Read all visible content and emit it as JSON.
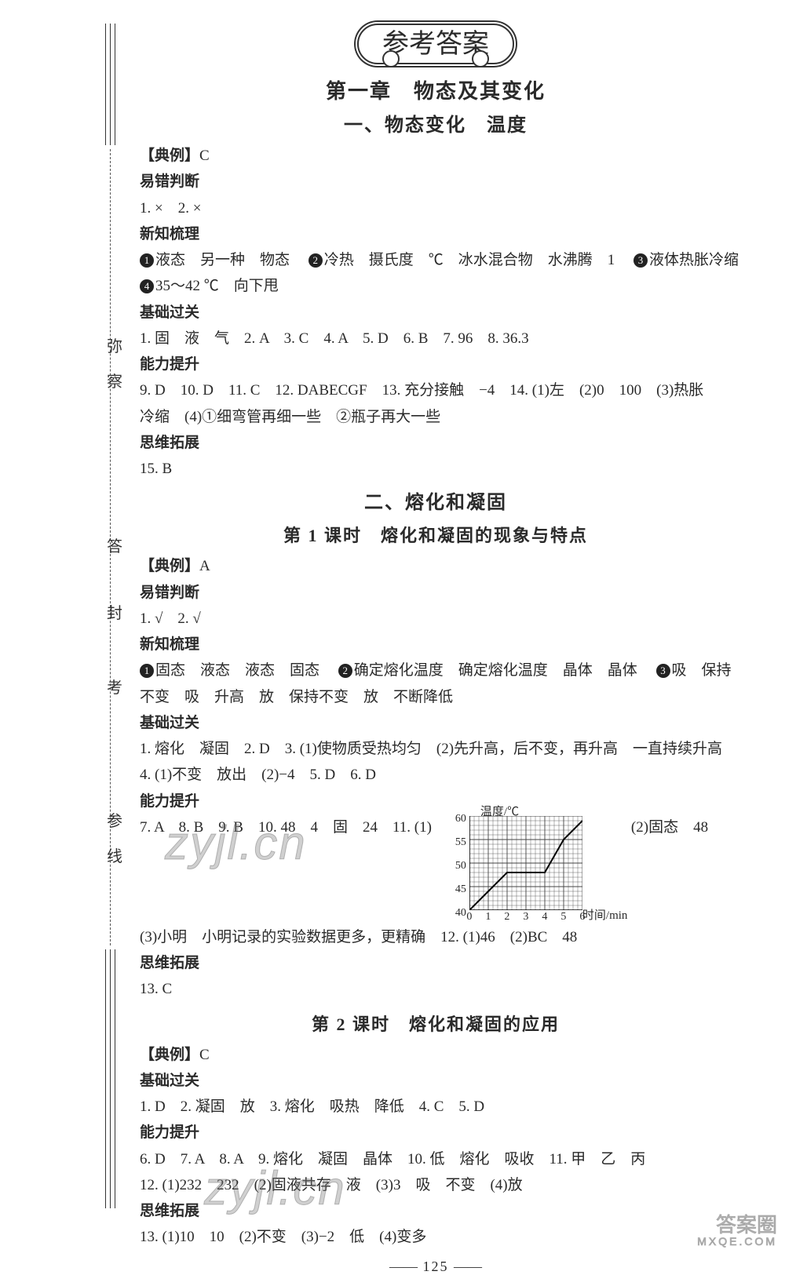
{
  "binding_labels": [
    "弥",
    "察",
    "答",
    "封",
    "考",
    "参",
    "线"
  ],
  "title_bubble": "参考答案",
  "chapter_title": "第一章　物态及其变化",
  "section1": {
    "title": "一、物态变化　温度",
    "example_head": "【典例】",
    "example_ans": "C",
    "err_head": "易错判断",
    "err_line": "1. ×　2. ×",
    "xinzhi_head": "新知梳理",
    "xinzhi_lines": [
      {
        "c": "1",
        "t": "液态　另一种　物态　"
      },
      {
        "c": "2",
        "t": "冷热　摄氏度　℃　冰水混合物　水沸腾　1　"
      },
      {
        "c": "3",
        "t": "液体热胀冷缩"
      },
      {
        "c": "4",
        "t": "35～42 ℃　向下甩"
      }
    ],
    "jichu_head": "基础过关",
    "jichu_line": "1. 固　液　气　2. A　3. C　4. A　5. D　6. B　7. 96　8. 36.3",
    "nengli_head": "能力提升",
    "nengli_lines": [
      "9. D　10. D　11. C　12. DABECGF　13. 充分接触　−4　14. (1)左　(2)0　100　(3)热胀",
      "冷缩　(4)①细弯管再细一些　②瓶子再大一些"
    ],
    "siwei_head": "思维拓展",
    "siwei_line": "15. B"
  },
  "section2": {
    "title": "二、熔化和凝固",
    "lesson1_title": "第 1 课时　熔化和凝固的现象与特点",
    "example_head": "【典例】",
    "example_ans": "A",
    "err_head": "易错判断",
    "err_line": "1. √　2. √",
    "xinzhi_head": "新知梳理",
    "xinzhi_line1_a": "固态　液态　液态　固态　",
    "xinzhi_line1_b": "确定熔化温度　确定熔化温度　晶体　晶体　",
    "xinzhi_line1_c": "吸　保持",
    "xinzhi_line2": "不变　吸　升高　放　保持不变　放　不断降低",
    "jichu_head": "基础过关",
    "jichu_lines": [
      "1. 熔化　凝固　2. D　3. (1)使物质受热均匀　(2)先升高，后不变，再升高　一直持续升高",
      "4. (1)不变　放出　(2)−4　5. D　6. D"
    ],
    "nengli_head": "能力提升",
    "nengli_before_chart": "7. A　8. B　9. B　10. 48　4　固　24　11. (1)",
    "nengli_after_chart": "(2)固态　48",
    "nengli_line2": "(3)小明　小明记录的实验数据更多，更精确　12. (1)46　(2)BC　48",
    "siwei_head": "思维拓展",
    "siwei_line": "13. C",
    "chart": {
      "type": "line",
      "title": "温度/℃",
      "xlabel": "时间/min",
      "ylim": [
        40,
        60
      ],
      "yticks": [
        40,
        45,
        50,
        55,
        60
      ],
      "xlim": [
        0,
        6
      ],
      "xticks": [
        0,
        1,
        2,
        3,
        4,
        5,
        6
      ],
      "grid_color": "#444",
      "line_color": "#000",
      "line_width": 2,
      "points": [
        [
          0,
          40
        ],
        [
          1,
          44
        ],
        [
          2,
          48
        ],
        [
          4,
          48
        ],
        [
          5,
          55
        ],
        [
          6,
          59
        ]
      ]
    }
  },
  "section3": {
    "lesson2_title": "第 2 课时　熔化和凝固的应用",
    "example_head": "【典例】",
    "example_ans": "C",
    "jichu_head": "基础过关",
    "jichu_line": "1. D　2. 凝固　放　3. 熔化　吸热　降低　4. C　5. D",
    "nengli_head": "能力提升",
    "nengli_lines": [
      "6. D　7. A　8. A　9. 熔化　凝固　晶体　10. 低　熔化　吸收　11. 甲　乙　丙",
      "12. (1)232　232　(2)固液共存　液　(3)3　吸　不变　(4)放"
    ],
    "siwei_head": "思维拓展",
    "siwei_line": "13. (1)10　10　(2)不变　(3)−2　低　(4)变多"
  },
  "watermark1": "zyjl.cn",
  "watermark2": "zyjl.cn",
  "corner_main": "答案圈",
  "corner_sub": "MXQE.COM",
  "page_number": "125"
}
